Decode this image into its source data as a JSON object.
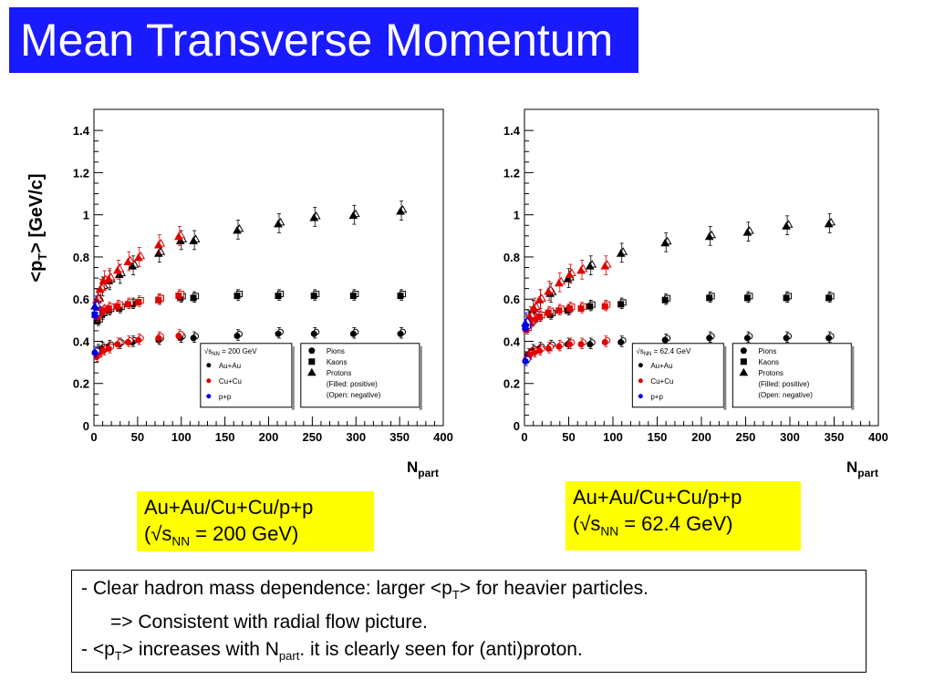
{
  "title": "Mean Transverse Momentum",
  "captions": {
    "left": {
      "line1": "Au+Au/Cu+Cu/p+p",
      "open": "(√s",
      "sub": "NN",
      "rest": " = 200 GeV)"
    },
    "right": {
      "line1": "Au+Au/Cu+Cu/p+p",
      "open": "(√s",
      "sub": "NN",
      "rest": " = 62.4 GeV)"
    }
  },
  "summary": {
    "l1a": "- Clear hadron mass dependence: larger <p",
    "l1sub": "T",
    "l1b": "> for heavier particles.",
    "l2": "=> Consistent with radial flow picture.",
    "l3a": "- <p",
    "l3sub1": "T",
    "l3b": "> increases with N",
    "l3sub2": "part",
    "l3c": ". it is clearly seen for (anti)proton."
  },
  "colors": {
    "auau": "#000000",
    "cucu": "#e00000",
    "pp": "#0000e0",
    "title_bg": "#1a1aff",
    "caption_bg": "#ffff00"
  },
  "chart_data": [
    {
      "type": "scatter",
      "ylabel": {
        "main": "<p",
        "sub": "T",
        "rest": "> [GeV/c]"
      },
      "xlabel": {
        "main": "N",
        "sub": "part"
      },
      "xlim": [
        0,
        400
      ],
      "ylim": [
        0,
        1.5
      ],
      "xticks": [
        "0",
        "50",
        "100",
        "150",
        "200",
        "250",
        "300",
        "350",
        "400"
      ],
      "yticks": [
        "0",
        "0.2",
        "0.4",
        "0.6",
        "0.8",
        "1",
        "1.2",
        "1.4"
      ],
      "legend_system": {
        "energy": "√s",
        "energy_sub": "NN",
        "energy_val": " = 200 GeV",
        "items": [
          "Au+Au",
          "Cu+Cu",
          "p+p"
        ]
      },
      "legend_species": {
        "items": [
          "Pions",
          "Kaons",
          "Protons",
          "(Filled: positive)",
          "(Open: negative)"
        ]
      },
      "series": [
        {
          "system": "Au+Au",
          "species": "pion",
          "x": [
            5,
            10,
            18,
            30,
            45,
            75,
            100,
            115,
            165,
            212,
            253,
            298,
            352
          ],
          "y": [
            0.36,
            0.37,
            0.38,
            0.39,
            0.4,
            0.41,
            0.42,
            0.42,
            0.43,
            0.44,
            0.44,
            0.44,
            0.44
          ]
        },
        {
          "system": "Au+Au",
          "species": "kaon",
          "x": [
            5,
            10,
            18,
            30,
            45,
            75,
            100,
            115,
            165,
            212,
            253,
            298,
            352
          ],
          "y": [
            0.5,
            0.53,
            0.55,
            0.56,
            0.58,
            0.6,
            0.61,
            0.61,
            0.62,
            0.62,
            0.62,
            0.62,
            0.62
          ]
        },
        {
          "system": "Au+Au",
          "species": "proton",
          "x": [
            5,
            10,
            18,
            30,
            45,
            75,
            100,
            115,
            165,
            212,
            253,
            298,
            352
          ],
          "y": [
            0.6,
            0.66,
            0.69,
            0.72,
            0.76,
            0.82,
            0.88,
            0.88,
            0.93,
            0.96,
            0.99,
            1.0,
            1.02
          ]
        },
        {
          "system": "Cu+Cu",
          "species": "pion",
          "x": [
            4,
            8,
            12,
            18,
            28,
            40,
            52,
            75,
            98
          ],
          "y": [
            0.33,
            0.35,
            0.36,
            0.37,
            0.39,
            0.4,
            0.41,
            0.42,
            0.43
          ]
        },
        {
          "system": "Cu+Cu",
          "species": "kaon",
          "x": [
            4,
            8,
            12,
            18,
            28,
            40,
            52,
            75,
            98
          ],
          "y": [
            0.52,
            0.54,
            0.55,
            0.56,
            0.57,
            0.58,
            0.59,
            0.6,
            0.62
          ]
        },
        {
          "system": "Cu+Cu",
          "species": "proton",
          "x": [
            4,
            8,
            12,
            18,
            28,
            40,
            52,
            75,
            98
          ],
          "y": [
            0.6,
            0.65,
            0.69,
            0.7,
            0.74,
            0.78,
            0.8,
            0.86,
            0.9
          ]
        },
        {
          "system": "p+p",
          "species": "pion",
          "x": [
            2
          ],
          "y": [
            0.35
          ]
        },
        {
          "system": "p+p",
          "species": "kaon",
          "x": [
            2
          ],
          "y": [
            0.53
          ]
        },
        {
          "system": "p+p",
          "species": "proton",
          "x": [
            2
          ],
          "y": [
            0.57
          ]
        }
      ]
    },
    {
      "type": "scatter",
      "xlabel": {
        "main": "N",
        "sub": "part"
      },
      "xlim": [
        0,
        400
      ],
      "ylim": [
        0,
        1.5
      ],
      "xticks": [
        "0",
        "50",
        "100",
        "150",
        "200",
        "250",
        "300",
        "350",
        "400"
      ],
      "yticks": [
        "0",
        "0.2",
        "0.4",
        "0.6",
        "0.8",
        "1",
        "1.2",
        "1.4"
      ],
      "legend_system": {
        "energy": "√s",
        "energy_sub": "NN",
        "energy_val": " = 62.4 GeV",
        "items": [
          "Au+Au",
          "Cu+Cu",
          "p+p"
        ]
      },
      "legend_species": {
        "items": [
          "Pions",
          "Kaons",
          "Protons",
          "(Filled: positive)",
          "(Open: negative)"
        ]
      },
      "series": [
        {
          "system": "Au+Au",
          "species": "pion",
          "x": [
            5,
            10,
            18,
            30,
            50,
            75,
            110,
            160,
            210,
            253,
            297,
            345
          ],
          "y": [
            0.34,
            0.36,
            0.37,
            0.38,
            0.39,
            0.39,
            0.4,
            0.41,
            0.42,
            0.42,
            0.42,
            0.42
          ]
        },
        {
          "system": "Au+Au",
          "species": "kaon",
          "x": [
            5,
            10,
            18,
            30,
            50,
            75,
            110,
            160,
            210,
            253,
            297,
            345
          ],
          "y": [
            0.48,
            0.5,
            0.52,
            0.53,
            0.55,
            0.57,
            0.58,
            0.6,
            0.61,
            0.61,
            0.61,
            0.61
          ]
        },
        {
          "system": "Au+Au",
          "species": "proton",
          "x": [
            5,
            10,
            18,
            30,
            50,
            75,
            110,
            160,
            210,
            253,
            297,
            345
          ],
          "y": [
            0.5,
            0.55,
            0.6,
            0.63,
            0.7,
            0.76,
            0.82,
            0.87,
            0.9,
            0.92,
            0.95,
            0.96
          ]
        },
        {
          "system": "Cu+Cu",
          "species": "pion",
          "x": [
            3,
            7,
            12,
            18,
            28,
            40,
            52,
            65,
            92
          ],
          "y": [
            0.32,
            0.34,
            0.35,
            0.36,
            0.37,
            0.38,
            0.39,
            0.39,
            0.4
          ]
        },
        {
          "system": "Cu+Cu",
          "species": "kaon",
          "x": [
            3,
            7,
            12,
            18,
            28,
            40,
            52,
            65,
            92
          ],
          "y": [
            0.46,
            0.49,
            0.51,
            0.52,
            0.54,
            0.55,
            0.56,
            0.56,
            0.57
          ]
        },
        {
          "system": "Cu+Cu",
          "species": "proton",
          "x": [
            3,
            7,
            12,
            18,
            28,
            40,
            52,
            65,
            92
          ],
          "y": [
            0.48,
            0.52,
            0.56,
            0.6,
            0.64,
            0.68,
            0.72,
            0.74,
            0.76
          ]
        },
        {
          "system": "p+p",
          "species": "pion",
          "x": [
            2
          ],
          "y": [
            0.31
          ]
        },
        {
          "system": "p+p",
          "species": "kaon",
          "x": [
            2
          ],
          "y": [
            0.47
          ]
        },
        {
          "system": "p+p",
          "species": "proton",
          "x": [
            2
          ],
          "y": [
            0.49
          ]
        }
      ]
    }
  ]
}
